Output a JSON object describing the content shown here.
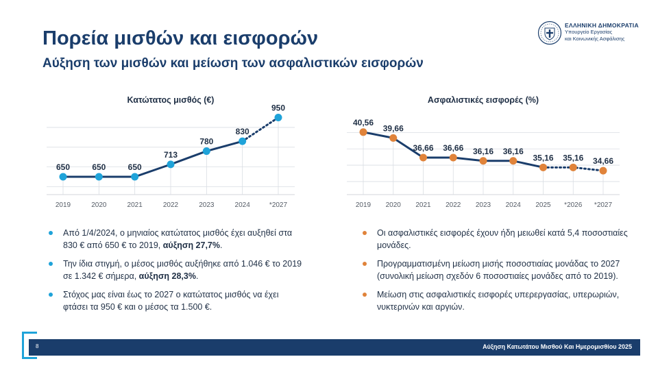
{
  "header": {
    "title": "Πορεία μισθών και εισφορών",
    "subtitle": "Αύξηση των μισθών και μείωση των ασφαλιστικών εισφορών"
  },
  "logo": {
    "name": "ΕΛΛΗΝΙΚΗ ΔΗΜΟΚΡΑΤΙΑ",
    "ministry_line1": "Υπουργείο Εργασίας",
    "ministry_line2": "και Κοινωνικής Ασφάλισης"
  },
  "chart_data": [
    {
      "type": "line",
      "title": "Κατώτατος μισθός (€)",
      "categories": [
        "2019",
        "2020",
        "2021",
        "2022",
        "2023",
        "2024",
        "*2027"
      ],
      "values": [
        650,
        650,
        650,
        713,
        780,
        830,
        950
      ],
      "labels": [
        "650",
        "650",
        "650",
        "713",
        "780",
        "830",
        "950"
      ],
      "projected_from_index": 5,
      "ylim": [
        560,
        990
      ],
      "gridlines": [
        600,
        700,
        800,
        900
      ],
      "grid": true,
      "color": "#1fa3d9",
      "line_color": "#1a3d6b"
    },
    {
      "type": "line",
      "title": "Ασφαλιστικές εισφορές (%)",
      "categories": [
        "2019",
        "2020",
        "2021",
        "2022",
        "2023",
        "2024",
        "2025",
        "*2026",
        "*2027"
      ],
      "values": [
        40.56,
        39.66,
        36.66,
        36.66,
        36.16,
        36.16,
        35.16,
        35.16,
        34.66
      ],
      "labels": [
        "40,56",
        "39,66",
        "36,66",
        "36,66",
        "36,16",
        "36,16",
        "35,16",
        "35,16",
        "34,66"
      ],
      "projected_from_index": 6,
      "ylim": [
        31,
        44
      ],
      "gridlines": [
        33,
        35.5,
        38,
        40.5
      ],
      "grid": true,
      "color": "#e0833a",
      "line_color": "#1a3d6b"
    }
  ],
  "left_bullets": [
    {
      "parts": [
        {
          "text": "Από 1/4/2024, ο μηνιαίος κατώτατος μισθός έχει αυξηθεί στα  830 € από 650 € το 2019, ",
          "bold": false
        },
        {
          "text": "αύξηση 27,7%",
          "bold": true
        },
        {
          "text": ".",
          "bold": false
        }
      ]
    },
    {
      "parts": [
        {
          "text": "Την ίδια στιγμή, ο μέσος μισθός αυξήθηκε από 1.046 € το 2019 σε 1.342 € σήμερα, ",
          "bold": false
        },
        {
          "text": "αύξηση 28,3%",
          "bold": true
        },
        {
          "text": ".",
          "bold": false
        }
      ]
    },
    {
      "parts": [
        {
          "text": "Στόχος μας είναι έως το 2027 ο κατώτατος μισθός να έχει φτάσει τα 950 € και ο μέσος τα 1.500 €.",
          "bold": false
        }
      ]
    }
  ],
  "right_bullets": [
    {
      "parts": [
        {
          "text": "Οι ασφαλιστικές εισφορές έχουν ήδη μειωθεί κατά 5,4 ποσοστιαίες μονάδες.",
          "bold": false
        }
      ]
    },
    {
      "parts": [
        {
          "text": "Προγραμματισμένη μείωση μισής ποσοστιαίας μονάδας το 2027 (συνολική μείωση σχεδόν 6 ποσοστιαίες μονάδες από το 2019).",
          "bold": false
        }
      ]
    },
    {
      "parts": [
        {
          "text": "Μείωση στις ασφαλιστικές εισφορές υπερεργασίας, υπερωριών, νυκτερινών και αργιών.",
          "bold": false
        }
      ]
    }
  ],
  "colors": {
    "wage_bullet": "#1fa3d9",
    "contrib_bullet": "#e0833a"
  },
  "footer": {
    "page_number": "8",
    "text": "Αύξηση Κατωτάτου Μισθού Και Ημερομισθίου 2025"
  }
}
